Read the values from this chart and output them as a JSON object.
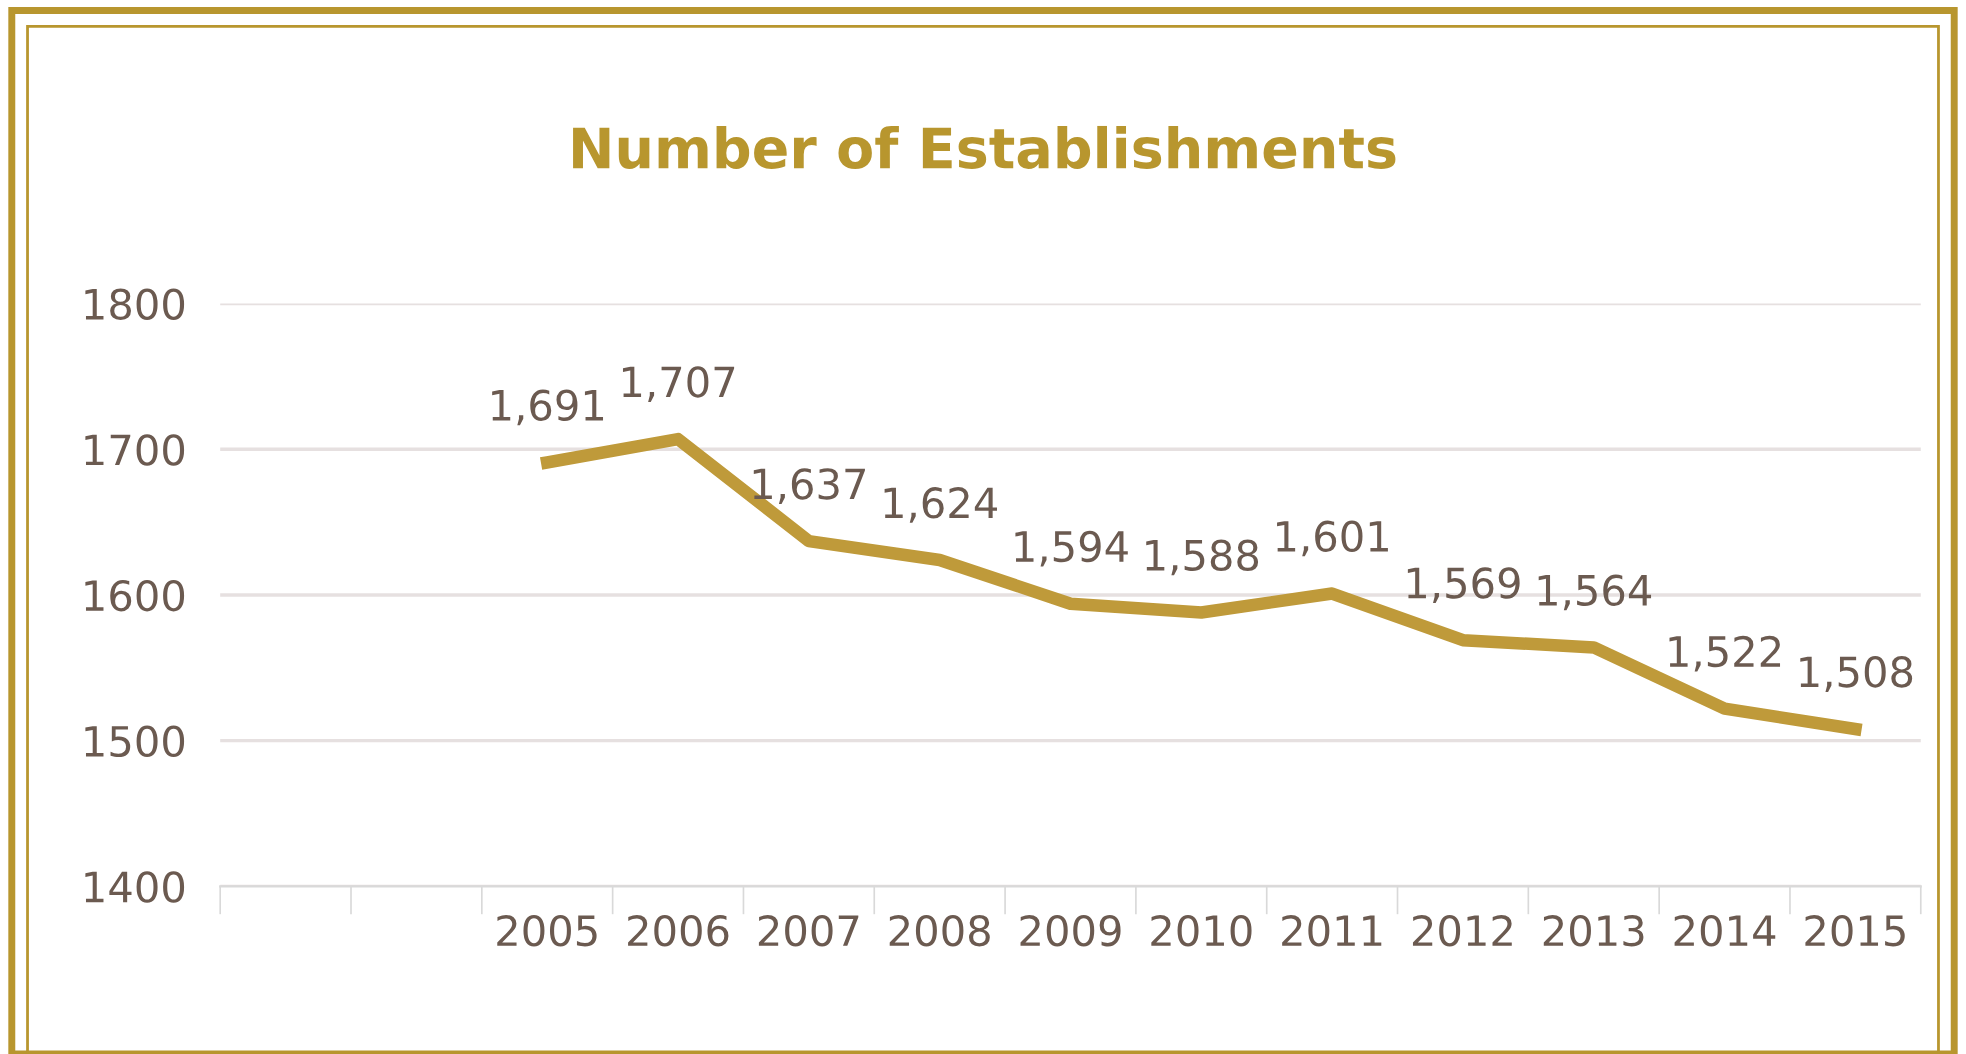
{
  "chart_data": {
    "type": "line",
    "title": "Number of Establishments",
    "categories": [
      null,
      null,
      "2005",
      "2006",
      "2007",
      "2008",
      "2009",
      "2010",
      "2011",
      "2012",
      "2013",
      "2014",
      "2015"
    ],
    "series": [
      {
        "color": "#bf9a3a",
        "values": [
          null,
          null,
          1691,
          1707,
          1637,
          1624,
          1594,
          1588,
          1601,
          1569,
          1564,
          1522,
          1508
        ],
        "value_labels": [
          null,
          null,
          "1,691",
          "1,707",
          "1,637",
          "1,624",
          "1,594",
          "1,588",
          "1,601",
          "1,569",
          "1,564",
          "1,522",
          "1,508"
        ]
      }
    ],
    "ylim": [
      1400,
      1800
    ],
    "yticks": [
      1400,
      1500,
      1600,
      1700,
      1800
    ],
    "grid": "y",
    "marker": "none",
    "line_style": "solid"
  }
}
